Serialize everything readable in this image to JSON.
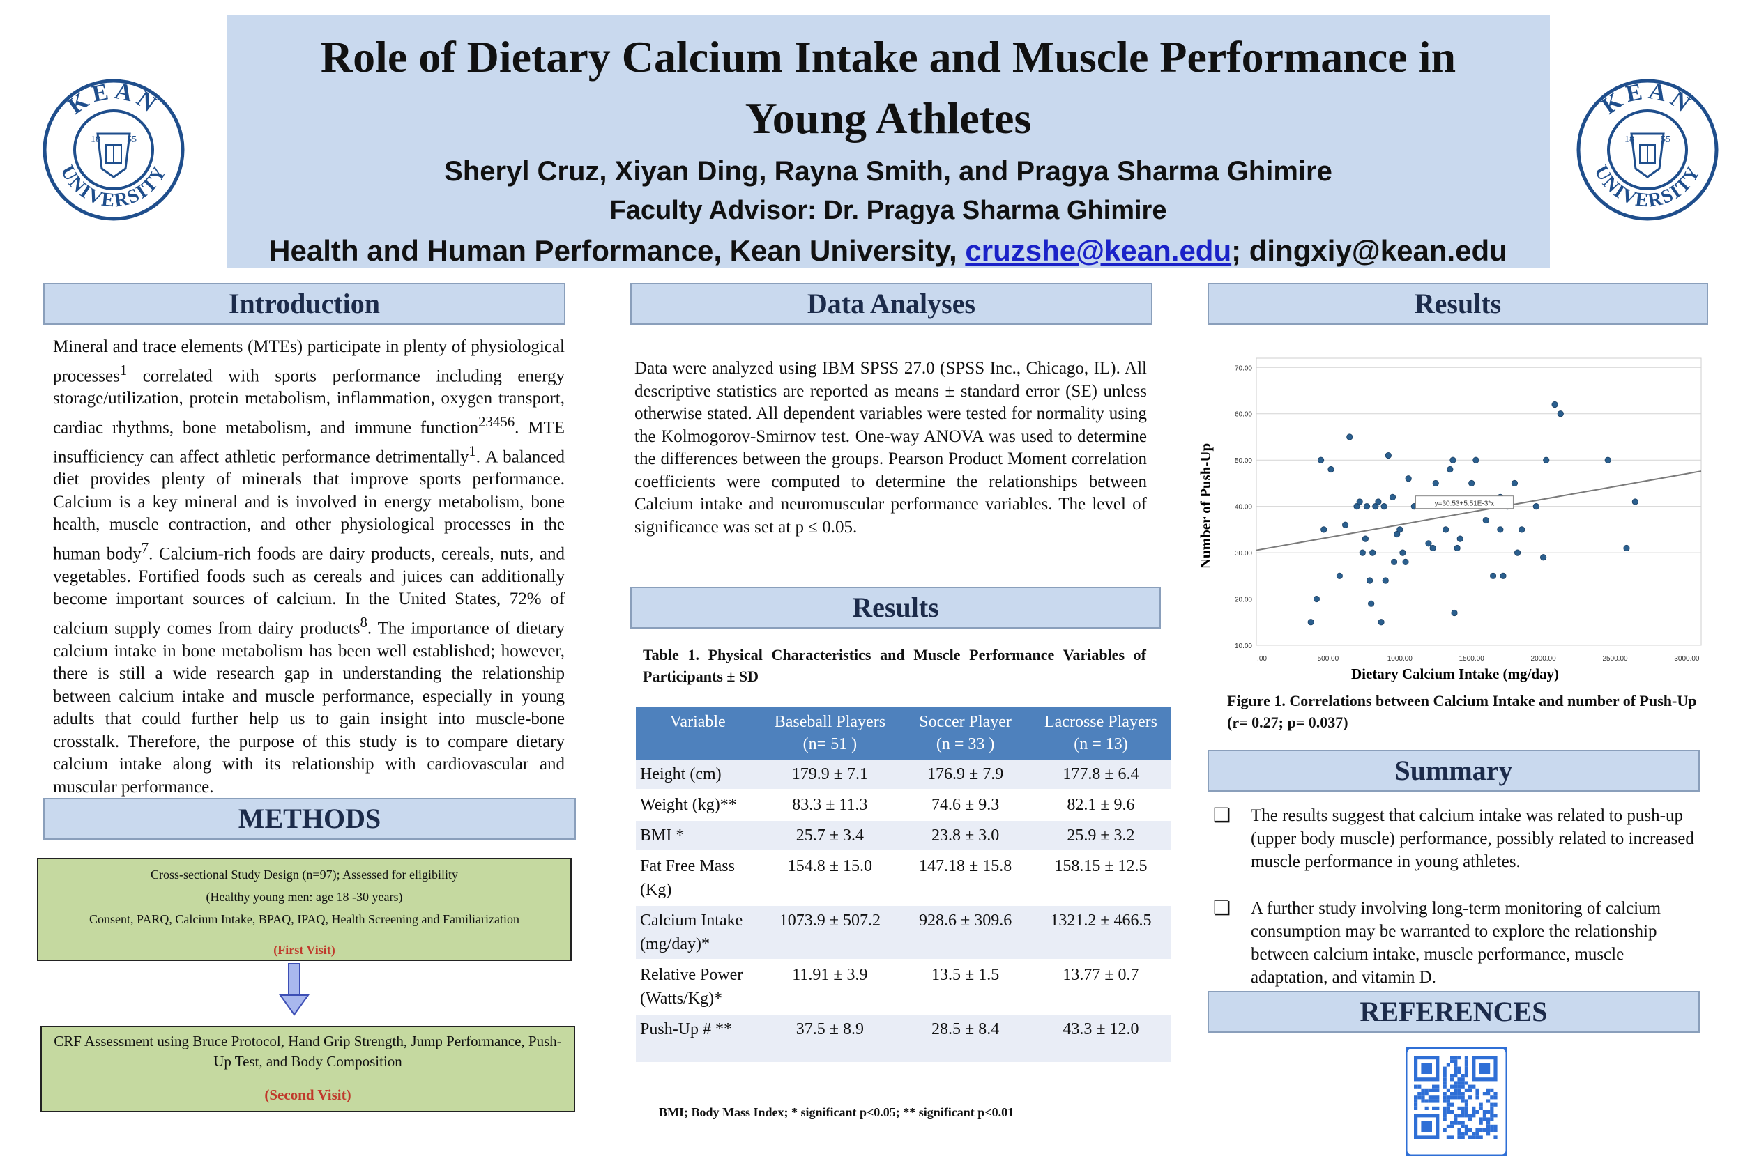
{
  "header": {
    "title": "Role of Dietary Calcium Intake and Muscle Performance in Young Athletes",
    "authors": "Sheryl Cruz, Xiyan Ding, Rayna Smith, and Pragya Sharma Ghimire",
    "advisor": "Faculty Advisor: Dr. Pragya Sharma Ghimire",
    "affiliation_prefix": "Health and Human Performance, Kean University, ",
    "email1": "cruzshe@kean.edu",
    "affiliation_suffix": "; dingxiy@kean.edu",
    "logo_text_top": "KEAN",
    "logo_text_bottom": "UNIVERSITY",
    "logo_year_left": "18",
    "logo_year_right": "55"
  },
  "introduction": {
    "heading": "Introduction",
    "body_html": "Mineral and trace elements (MTEs) participate in plenty of physiological processes<sup>1</sup> correlated with sports performance including energy storage/utilization, protein metabolism, inflammation, oxygen transport, cardiac rhythms, bone metabolism, and immune function<sup>23456</sup>. MTE insufficiency can affect athletic performance detrimentally<sup>1</sup>. A balanced diet provides plenty of minerals that improve sports performance. Calcium is a key mineral and is involved in energy metabolism, bone health, muscle contraction, and other physiological processes in the human body<sup>7</sup>. Calcium-rich foods are dairy products, cereals, nuts, and vegetables. Fortified foods such as cereals and juices can additionally become important sources of calcium. In the United States, 72% of calcium supply comes from dairy products<sup>8</sup>. The importance of dietary calcium intake in bone metabolism has been well established; however, there is still a wide research gap in understanding the relationship between calcium intake and muscle performance, especially in young adults that could further help us to gain insight into muscle-bone crosstalk. Therefore, the purpose of this study is to compare dietary calcium intake along with its relationship with cardiovascular and muscular performance."
  },
  "methods": {
    "heading": "METHODS",
    "box1_line1": "Cross-sectional Study Design (n=97); Assessed for eligibility",
    "box1_line2": "(Healthy young men:  age 18 -30 years)",
    "box1_line3": "Consent, PARQ, Calcium Intake, BPAQ, IPAQ, Health Screening and Familiarization",
    "box1_visit": "(First Visit)",
    "box2_line1": "CRF Assessment using Bruce Protocol, Hand Grip Strength, Jump Performance, Push-Up Test, and Body Composition",
    "box2_visit": "(Second Visit)"
  },
  "data_analyses": {
    "heading": "Data Analyses",
    "body": "Data were analyzed using IBM SPSS 27.0 (SPSS Inc., Chicago, IL). All descriptive statistics are reported as means ± standard error (SE) unless otherwise stated. All dependent variables were tested for normality using the Kolmogorov-Smirnov test. One-way ANOVA was used to determine the differences between the groups. Pearson Product Moment correlation coefficients were computed to determine the relationships between Calcium intake and neuromuscular performance variables. The level of significance was set at p ≤ 0.05."
  },
  "results_table": {
    "heading": "Results",
    "caption": "Table 1. Physical Characteristics and Muscle Performance Variables of  Participants ± SD",
    "columns": [
      {
        "name": "Variable",
        "sub": ""
      },
      {
        "name": "Baseball Players",
        "sub": "(n= 51 )"
      },
      {
        "name": "Soccer Player",
        "sub": "(n = 33 )"
      },
      {
        "name": "Lacrosse Players",
        "sub": "(n = 13)"
      }
    ],
    "rows": [
      {
        "variable": "Height (cm)",
        "baseball": "179.9 ± 7.1",
        "soccer": "176.9 ± 7.9",
        "lacrosse": "177.8 ± 6.4"
      },
      {
        "variable": "Weight (kg)**",
        "baseball": "83.3 ± 11.3",
        "soccer": "74.6 ± 9.3",
        "lacrosse": "82.1 ± 9.6"
      },
      {
        "variable": "BMI *",
        "baseball": "25.7 ± 3.4",
        "soccer": "23.8 ± 3.0",
        "lacrosse": "25.9 ± 3.2"
      },
      {
        "variable": "Fat Free Mass (Kg)",
        "baseball": "154.8 ± 15.0",
        "soccer": "147.18 ± 15.8",
        "lacrosse": "158.15 ± 12.5"
      },
      {
        "variable": "Calcium Intake (mg/day)*",
        "baseball": "1073.9 ± 507.2",
        "soccer": "928.6 ± 309.6",
        "lacrosse": "1321.2 ± 466.5"
      },
      {
        "variable": "Relative Power (Watts/Kg)*",
        "baseball": "11.91 ± 3.9",
        "soccer": "13.5 ± 1.5",
        "lacrosse": "13.77 ± 0.7"
      },
      {
        "variable": "Push-Up # **",
        "baseball": "37.5 ± 8.9",
        "soccer": "28.5 ± 8.4",
        "lacrosse": "43.3 ± 12.0"
      }
    ],
    "footnote": "BMI; Body Mass Index; * significant p<0.05; ** significant p<0.01"
  },
  "results_figure": {
    "heading": "Results",
    "caption": "Figure 1. Correlations between Calcium Intake and number of Push-Up (r= 0.27; p= 0.037)"
  },
  "chart_data": {
    "type": "scatter",
    "title": "",
    "xlabel": "Dietary Calcium Intake (mg/day)",
    "ylabel": "Number of Push-Up",
    "xlim": [
      0,
      3100
    ],
    "ylim": [
      10,
      72
    ],
    "xticks": [
      0,
      500,
      1000,
      1500,
      2000,
      2500,
      3000
    ],
    "xtick_labels": [
      ".00",
      "500.00",
      "1000.00",
      "1500.00",
      "2000.00",
      "2500.00",
      "3000.00"
    ],
    "yticks": [
      10,
      20,
      30,
      40,
      50,
      60,
      70
    ],
    "ytick_labels": [
      "10.00",
      "20.00",
      "30.00",
      "40.00",
      "50.00",
      "60.00",
      "70.00"
    ],
    "fit_line": {
      "intercept": 30.53,
      "slope": 0.00551,
      "label": "y=30.53+5.51E-3*x"
    },
    "points": [
      [
        380,
        15
      ],
      [
        420,
        20
      ],
      [
        450,
        50
      ],
      [
        470,
        35
      ],
      [
        520,
        48
      ],
      [
        580,
        25
      ],
      [
        620,
        36
      ],
      [
        650,
        55
      ],
      [
        700,
        40
      ],
      [
        720,
        41
      ],
      [
        740,
        30
      ],
      [
        760,
        33
      ],
      [
        770,
        40
      ],
      [
        790,
        24
      ],
      [
        800,
        19
      ],
      [
        810,
        30
      ],
      [
        830,
        40
      ],
      [
        850,
        41
      ],
      [
        870,
        15
      ],
      [
        890,
        40
      ],
      [
        900,
        24
      ],
      [
        920,
        51
      ],
      [
        950,
        42
      ],
      [
        960,
        28
      ],
      [
        980,
        34
      ],
      [
        1000,
        35
      ],
      [
        1020,
        30
      ],
      [
        1040,
        28
      ],
      [
        1060,
        46
      ],
      [
        1100,
        40
      ],
      [
        1150,
        41
      ],
      [
        1200,
        32
      ],
      [
        1230,
        31
      ],
      [
        1250,
        45
      ],
      [
        1320,
        35
      ],
      [
        1350,
        48
      ],
      [
        1370,
        50
      ],
      [
        1380,
        17
      ],
      [
        1400,
        31
      ],
      [
        1420,
        33
      ],
      [
        1500,
        45
      ],
      [
        1530,
        50
      ],
      [
        1600,
        37
      ],
      [
        1650,
        25
      ],
      [
        1700,
        35
      ],
      [
        1720,
        25
      ],
      [
        1750,
        40
      ],
      [
        1800,
        45
      ],
      [
        1820,
        30
      ],
      [
        1850,
        35
      ],
      [
        1950,
        40
      ],
      [
        2000,
        29
      ],
      [
        2020,
        50
      ],
      [
        2080,
        62
      ],
      [
        2120,
        60
      ],
      [
        2450,
        50
      ],
      [
        2580,
        31
      ],
      [
        2640,
        41
      ],
      [
        1700,
        42
      ]
    ]
  },
  "summary": {
    "heading": "Summary",
    "bullet_glyph": "❏",
    "items": [
      "The results suggest that calcium intake was related to push-up (upper body muscle) performance, possibly related to increased muscle performance in young athletes.",
      "A further study involving long-term monitoring of calcium consumption may be warranted to explore the relationship between calcium intake, muscle performance, muscle adaptation, and vitamin D."
    ]
  },
  "references": {
    "heading": "REFERENCES"
  },
  "colors": {
    "header_bg": "#c9d9ee",
    "table_header": "#4e81bd",
    "methods_box": "#c5d9a0",
    "logo_blue": "#1f4e8c"
  }
}
